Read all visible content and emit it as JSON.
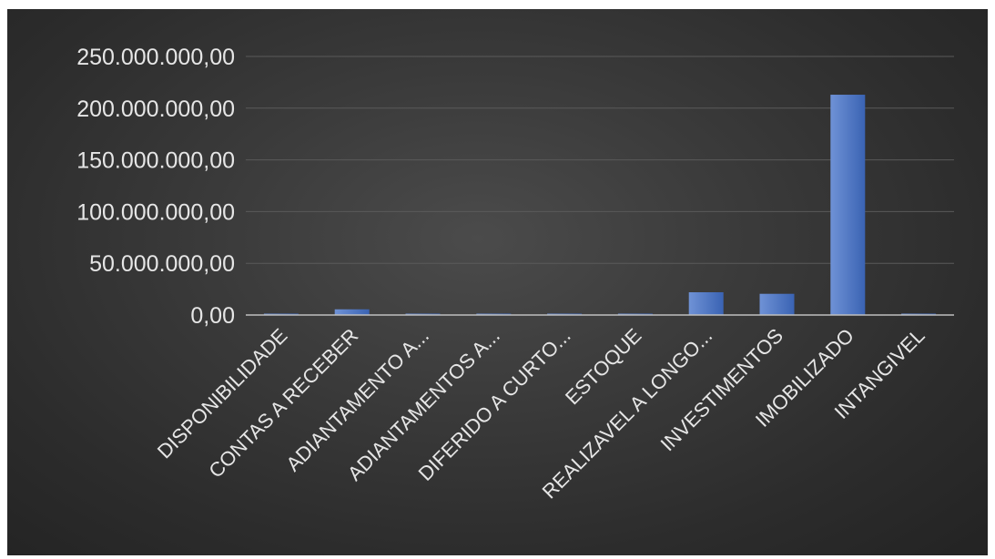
{
  "chart_data": {
    "type": "bar",
    "title": "",
    "xlabel": "",
    "ylabel": "",
    "ylim": [
      0,
      250000000
    ],
    "y_ticks": [
      0,
      50000000,
      100000000,
      150000000,
      200000000,
      250000000
    ],
    "y_tick_labels": [
      "0,00",
      "50.000.000,00",
      "100.000.000,00",
      "150.000.000,00",
      "200.000.000,00",
      "250.000.000,00"
    ],
    "grid": true,
    "legend": "none",
    "categories": [
      "DISPONIBILIDADE",
      "CONTAS A RECEBER",
      "ADIANTAMENTO A...",
      "ADIANTAMENTOS A...",
      "DIFERIDO A CURTO...",
      "ESTOQUE",
      "REALIZAVEL A LONGO...",
      "INVESTIMENTOS",
      "IMOBILIZADO",
      "INTANGIVEL"
    ],
    "values": [
      700000,
      5500000,
      300000,
      400000,
      300000,
      500000,
      22000000,
      20500000,
      213000000,
      600000
    ],
    "colors": {
      "bar": "#4472c4",
      "bar_light": "#6f92d6",
      "bar_dark": "#3a63b3",
      "text": "#e6e6e6",
      "grid": "#5a5a5a",
      "axis": "#bfbfbf"
    }
  }
}
